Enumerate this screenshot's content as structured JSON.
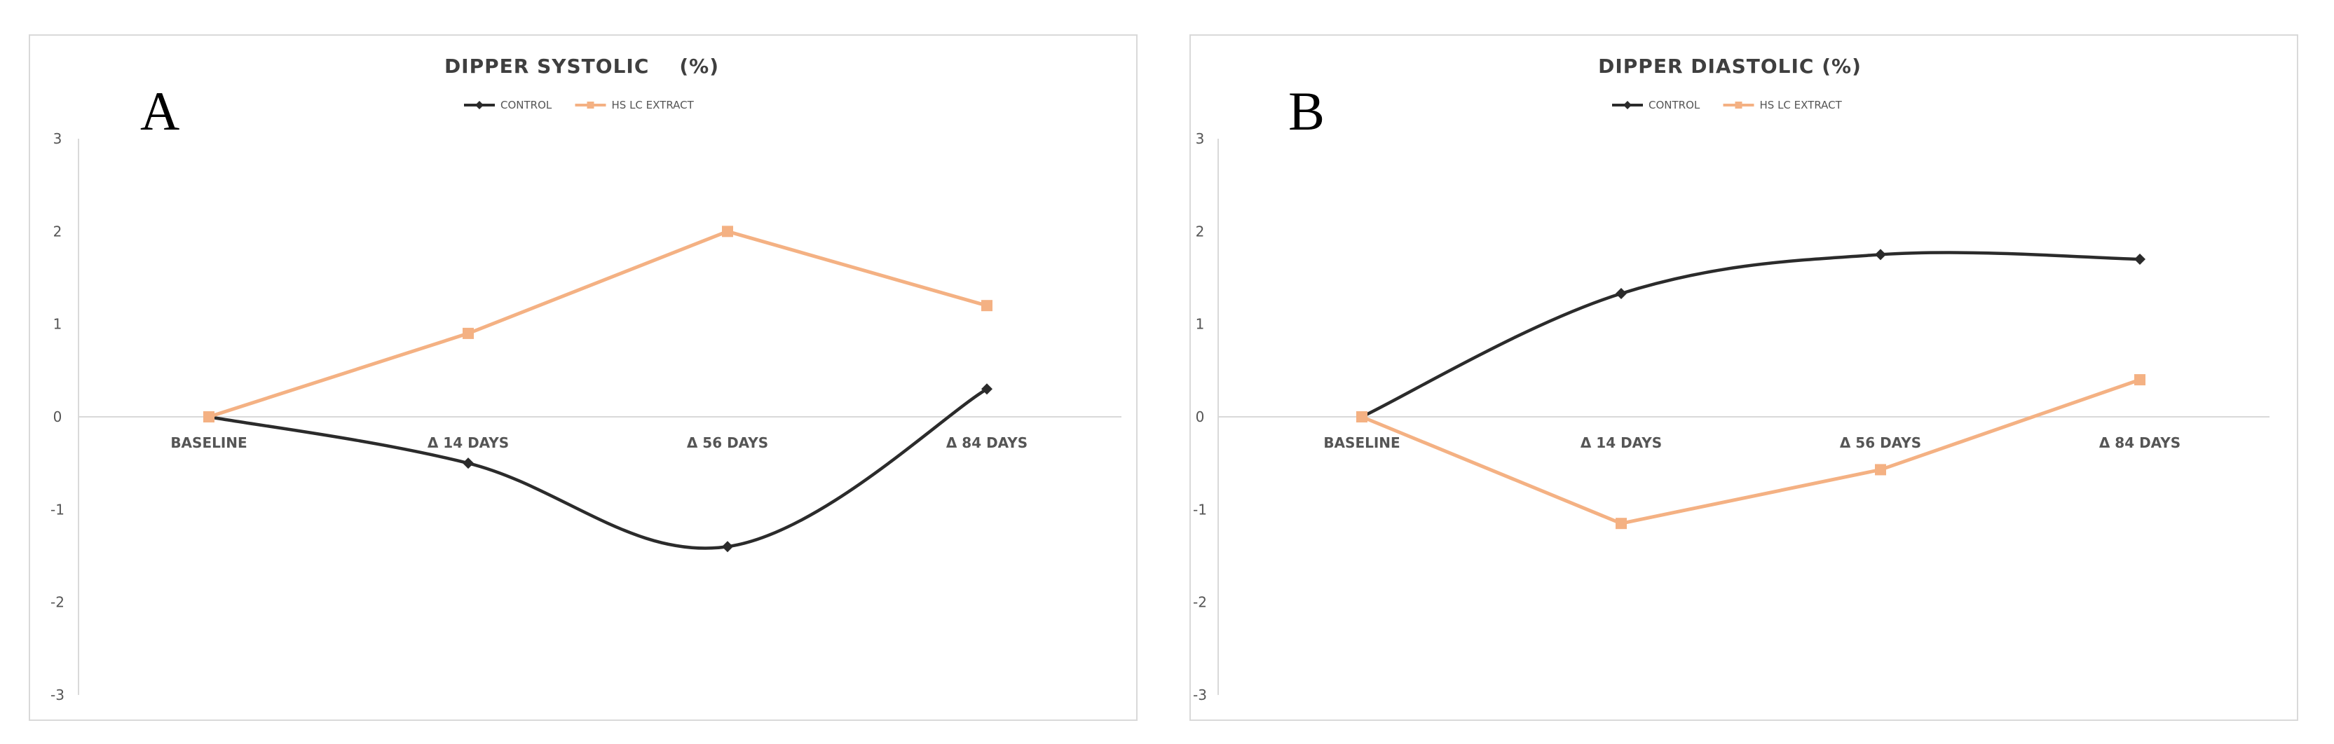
{
  "chart_data": [
    {
      "type": "line",
      "panel_label": "A",
      "title": "DIPPER SYSTOLIC    (%)",
      "categories": [
        "BASELINE",
        "Δ 14 DAYS",
        "Δ 56 DAYS",
        "Δ 84 DAYS"
      ],
      "ylim": [
        -3,
        3
      ],
      "yticks": [
        3,
        2,
        1,
        0,
        -1,
        -2,
        -3
      ],
      "legend_position": "top",
      "series": [
        {
          "name": "CONTROL",
          "values": [
            0,
            -0.5,
            -1.4,
            0.3
          ],
          "color": "#2b2b2b",
          "marker": "diamond",
          "smooth": true
        },
        {
          "name": "HS LC EXTRACT",
          "values": [
            0,
            0.9,
            2.0,
            1.2
          ],
          "color": "#f4b183",
          "marker": "square",
          "smooth": false
        }
      ]
    },
    {
      "type": "line",
      "panel_label": "B",
      "title": "DIPPER DIASTOLIC (%)",
      "categories": [
        "BASELINE",
        "Δ 14 DAYS",
        "Δ 56 DAYS",
        "Δ 84 DAYS"
      ],
      "ylim": [
        -3,
        3
      ],
      "yticks": [
        3,
        2,
        1,
        0,
        -1,
        -2,
        -3
      ],
      "legend_position": "top",
      "series": [
        {
          "name": "CONTROL",
          "values": [
            0,
            1.33,
            1.75,
            1.7
          ],
          "color": "#2b2b2b",
          "marker": "diamond",
          "smooth": true
        },
        {
          "name": "HS LC EXTRACT",
          "values": [
            0,
            -1.15,
            -0.57,
            0.4
          ],
          "color": "#f4b183",
          "marker": "square",
          "smooth": false
        }
      ]
    }
  ]
}
